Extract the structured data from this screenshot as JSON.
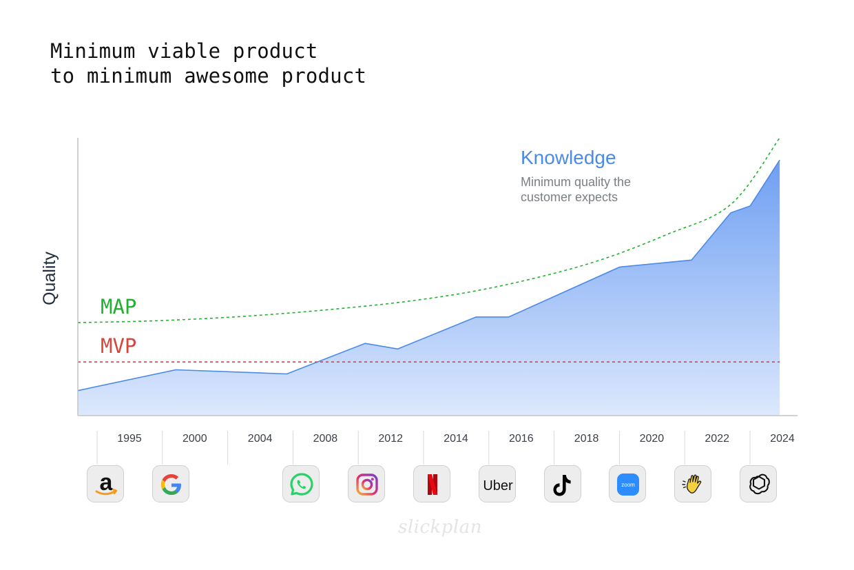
{
  "title_lines": [
    "Minimum viable product",
    "to minimum awesome product"
  ],
  "watermark": "slickplan",
  "colors": {
    "knowledge": "#4a8ae8",
    "knowledge_fill_top": "#6e9ff2",
    "knowledge_fill_bottom": "#dce8fd",
    "map": "#22b12f",
    "mvp": "#d8453b",
    "axis": "#c4c4c4",
    "caption": "#7a7f86",
    "ylabel": "#1f2d3d"
  },
  "chart_data": {
    "type": "area",
    "ylabel": "Quality",
    "xlabel": "",
    "ylim": [
      0,
      100
    ],
    "grid": false,
    "x_ticks": [
      "1995",
      "2000",
      "2004",
      "2008",
      "2012",
      "2014",
      "2016",
      "2018",
      "2020",
      "2022",
      "2024"
    ],
    "series": [
      {
        "name": "Knowledge",
        "caption": "Minimum quality the customer expects",
        "points": [
          [
            0.0,
            9
          ],
          [
            1.5,
            16.5
          ],
          [
            3.2,
            15
          ],
          [
            4.4,
            26
          ],
          [
            4.9,
            24
          ],
          [
            6.1,
            35.5
          ],
          [
            6.6,
            35.5
          ],
          [
            8.3,
            53.5
          ],
          [
            9.4,
            56
          ],
          [
            10.0,
            73
          ],
          [
            10.3,
            75.5
          ],
          [
            10.75,
            92
          ]
        ]
      },
      {
        "name": "MAP",
        "style": "dashed",
        "points": [
          [
            0.0,
            33.5
          ],
          [
            1.0,
            34
          ],
          [
            2.0,
            35
          ],
          [
            3.0,
            36.5
          ],
          [
            4.0,
            38.5
          ],
          [
            5.0,
            41
          ],
          [
            6.0,
            44.5
          ],
          [
            7.0,
            49.5
          ],
          [
            8.0,
            56
          ],
          [
            9.0,
            65
          ],
          [
            10.0,
            76
          ],
          [
            10.75,
            100
          ]
        ]
      },
      {
        "name": "MVP",
        "style": "dashed",
        "points": [
          [
            0.0,
            19.3
          ],
          [
            10.75,
            19.3
          ]
        ]
      }
    ],
    "milestones": [
      {
        "slot": 0,
        "icon": "amazon-icon"
      },
      {
        "slot": 1,
        "icon": "google-icon"
      },
      {
        "slot": 3,
        "icon": "whatsapp-icon"
      },
      {
        "slot": 4,
        "icon": "instagram-icon"
      },
      {
        "slot": 5,
        "icon": "netflix-icon"
      },
      {
        "slot": 6,
        "icon": "uber-icon",
        "text": "Uber"
      },
      {
        "slot": 7,
        "icon": "tiktok-icon"
      },
      {
        "slot": 8,
        "icon": "zoom-icon",
        "text": "zoom"
      },
      {
        "slot": 9,
        "icon": "clubhouse-icon"
      },
      {
        "slot": 10,
        "icon": "openai-icon"
      }
    ]
  }
}
